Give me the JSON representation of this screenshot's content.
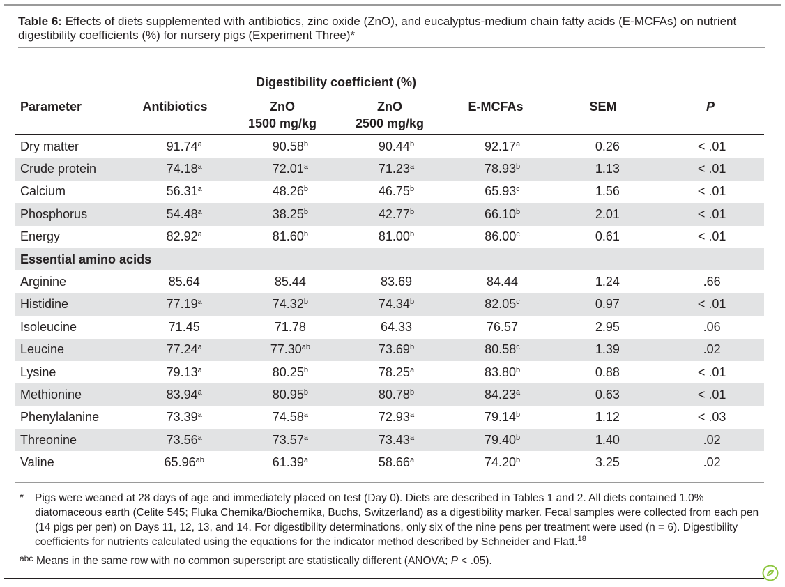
{
  "caption": {
    "label": "Table 6:",
    "text": "Effects of diets supplemented with antibiotics, zinc oxide (ZnO), and eucalyptus-medium chain fatty acids (E-MCFAs) on nutrient digestibility coefficients (%) for nursery pigs (Experiment Three)*"
  },
  "header": {
    "group_label": "Digestibility coefficient (%)",
    "parameter": "Parameter",
    "antibiotics": "Antibiotics",
    "zno1500_a": "ZnO",
    "zno1500_b": "1500 mg/kg",
    "zno2500_a": "ZnO",
    "zno2500_b": "2500 mg/kg",
    "emcfas": "E-MCFAs",
    "sem": "SEM",
    "p": "P"
  },
  "rows": [
    {
      "param": "Dry matter",
      "v": [
        [
          "91.74",
          "a"
        ],
        [
          "90.58",
          "b"
        ],
        [
          "90.44",
          "b"
        ],
        [
          "92.17",
          "a"
        ]
      ],
      "sem": "0.26",
      "p": "< .01",
      "shade": false
    },
    {
      "param": "Crude protein",
      "v": [
        [
          "74.18",
          "a"
        ],
        [
          "72.01",
          "a"
        ],
        [
          "71.23",
          "a"
        ],
        [
          "78.93",
          "b"
        ]
      ],
      "sem": "1.13",
      "p": "< .01",
      "shade": true
    },
    {
      "param": "Calcium",
      "v": [
        [
          "56.31",
          "a"
        ],
        [
          "48.26",
          "b"
        ],
        [
          "46.75",
          "b"
        ],
        [
          "65.93",
          "c"
        ]
      ],
      "sem": "1.56",
      "p": "< .01",
      "shade": false
    },
    {
      "param": "Phosphorus",
      "v": [
        [
          "54.48",
          "a"
        ],
        [
          "38.25",
          "b"
        ],
        [
          "42.77",
          "b"
        ],
        [
          "66.10",
          "b"
        ]
      ],
      "sem": "2.01",
      "p": "< .01",
      "shade": true
    },
    {
      "param": "Energy",
      "v": [
        [
          "82.92",
          "a"
        ],
        [
          "81.60",
          "b"
        ],
        [
          "81.00",
          "b"
        ],
        [
          "86.00",
          "c"
        ]
      ],
      "sem": "0.61",
      "p": "< .01",
      "shade": false
    },
    {
      "param": "Essential amino acids",
      "section": true,
      "shade": true
    },
    {
      "param": "Arginine",
      "v": [
        [
          "85.64",
          ""
        ],
        [
          "85.44",
          ""
        ],
        [
          "83.69",
          ""
        ],
        [
          "84.44",
          ""
        ]
      ],
      "sem": "1.24",
      "p": ".66",
      "shade": false
    },
    {
      "param": "Histidine",
      "v": [
        [
          "77.19",
          "a"
        ],
        [
          "74.32",
          "b"
        ],
        [
          "74.34",
          "b"
        ],
        [
          "82.05",
          "c"
        ]
      ],
      "sem": "0.97",
      "p": "< .01",
      "shade": true
    },
    {
      "param": "Isoleucine",
      "v": [
        [
          "71.45",
          ""
        ],
        [
          "71.78",
          ""
        ],
        [
          "64.33",
          ""
        ],
        [
          "76.57",
          ""
        ]
      ],
      "sem": "2.95",
      "p": ".06",
      "shade": false
    },
    {
      "param": "Leucine",
      "v": [
        [
          "77.24",
          "a"
        ],
        [
          "77.30",
          "ab"
        ],
        [
          "73.69",
          "b"
        ],
        [
          "80.58",
          "c"
        ]
      ],
      "sem": "1.39",
      "p": ".02",
      "shade": true
    },
    {
      "param": "Lysine",
      "v": [
        [
          "79.13",
          "a"
        ],
        [
          "80.25",
          "b"
        ],
        [
          "78.25",
          "a"
        ],
        [
          "83.80",
          "b"
        ]
      ],
      "sem": "0.88",
      "p": "< .01",
      "shade": false
    },
    {
      "param": "Methionine",
      "v": [
        [
          "83.94",
          "a"
        ],
        [
          "80.95",
          "b"
        ],
        [
          "80.78",
          "b"
        ],
        [
          "84.23",
          "a"
        ]
      ],
      "sem": "0.63",
      "p": "< .01",
      "shade": true
    },
    {
      "param": "Phenylalanine",
      "v": [
        [
          "73.39",
          "a"
        ],
        [
          "74.58",
          "a"
        ],
        [
          "72.93",
          "a"
        ],
        [
          "79.14",
          "b"
        ]
      ],
      "sem": "1.12",
      "p": "< .03",
      "shade": false
    },
    {
      "param": "Threonine",
      "v": [
        [
          "73.56",
          "a"
        ],
        [
          "73.57",
          "a"
        ],
        [
          "73.43",
          "a"
        ],
        [
          "79.40",
          "b"
        ]
      ],
      "sem": "1.40",
      "p": ".02",
      "shade": true
    },
    {
      "param": "Valine",
      "v": [
        [
          "65.96",
          "ab"
        ],
        [
          "61.39",
          "a"
        ],
        [
          "58.66",
          "a"
        ],
        [
          "74.20",
          "b"
        ]
      ],
      "sem": "3.25",
      "p": ".02",
      "shade": false
    }
  ],
  "footnotes": {
    "star_mark": "*",
    "star_text": "Pigs were weaned at 28 days of age and immediately placed on test (Day 0). Diets are described in Tables 1 and 2. All diets contained 1.0% diatomaceous earth (Celite 545; Fluka Chemika/Biochemika, Buchs, Switzerland) as a digestibility marker. Fecal samples were collected from each pen (14 pigs per pen) on Days 11, 12, 13, and 14. For digestibility determinations, only six of the nine pens per treatment were used (n = 6). Digestibility coefficients for nutrients calculated using the equations for the indicator method  described by Schneider and Flatt.",
    "star_ref": "18",
    "abc_mark": "abc",
    "abc_text": "Means in the same row with no common superscript are statistically different (ANOVA; P < .05)."
  },
  "colors": {
    "shade": "#e2e3e4",
    "logo_green": "#8dc63f"
  },
  "icons": {
    "logo": "leaf-logo-icon"
  }
}
